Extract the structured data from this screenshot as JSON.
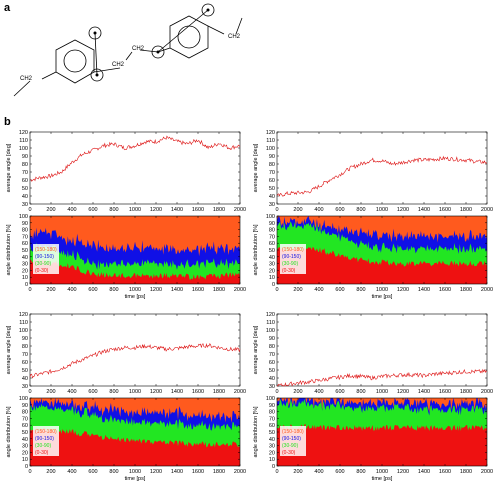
{
  "panel_a": {
    "letter": "a",
    "labels": {
      "ch2_left": "CH2",
      "ch2_bridge_top": "CH2",
      "ch2_bridge_bottom": "CH2",
      "ch2_right": "CH2"
    }
  },
  "panel_b": {
    "letter": "b"
  },
  "axis_text": {
    "avg_ylabel": "average angle [deg]",
    "dist_ylabel": "angle distribution [%]",
    "xlabel": "time [ps]"
  },
  "legend_labels": [
    "150-180",
    "90-150",
    "30-90",
    "0-30"
  ],
  "colors": {
    "line": "#dd1111",
    "c150_180": "#ff5a1e",
    "c90_150": "#1010e6",
    "c30_90": "#22e622",
    "c0_30": "#ee1111"
  },
  "chart_data": [
    {
      "type": "line",
      "position": "top-left",
      "ylabel": "average angle [deg]",
      "xlabel": "",
      "xlim": [
        0,
        2000
      ],
      "ylim": [
        30,
        120
      ],
      "xticks": [
        0,
        200,
        400,
        600,
        800,
        1000,
        1200,
        1400,
        1600,
        1800,
        2000
      ],
      "yticks": [
        30,
        40,
        50,
        60,
        70,
        80,
        90,
        100,
        110,
        120
      ],
      "series": [
        {
          "x": [
            0,
            100,
            200,
            300,
            400,
            500,
            600,
            700,
            800,
            900,
            1000,
            1100,
            1200,
            1300,
            1400,
            1500,
            1600,
            1700,
            1800,
            1900,
            2000
          ],
          "values": [
            60,
            63,
            65,
            70,
            82,
            92,
            97,
            103,
            105,
            100,
            103,
            108,
            108,
            113,
            108,
            105,
            110,
            100,
            106,
            100,
            103
          ]
        }
      ]
    },
    {
      "type": "area",
      "position": "top-left",
      "stacked": true,
      "ylabel": "angle distribution [%]",
      "xlabel": "time [ps]",
      "xlim": [
        0,
        2000
      ],
      "ylim": [
        0,
        100
      ],
      "xticks": [
        0,
        200,
        400,
        600,
        800,
        1000,
        1200,
        1400,
        1600,
        1800,
        2000
      ],
      "yticks": [
        0,
        10,
        20,
        30,
        40,
        50,
        60,
        70,
        80,
        90,
        100
      ],
      "legend": "left",
      "x": [
        0,
        200,
        400,
        600,
        800,
        1000,
        1200,
        1400,
        1600,
        1800,
        2000
      ],
      "series": [
        {
          "name": "0-30",
          "values": [
            35,
            32,
            25,
            15,
            12,
            12,
            12,
            12,
            10,
            12,
            14
          ]
        },
        {
          "name": "30-90",
          "values": [
            20,
            22,
            18,
            15,
            18,
            18,
            20,
            15,
            20,
            18,
            16
          ]
        },
        {
          "name": "90-150",
          "values": [
            20,
            21,
            22,
            28,
            22,
            24,
            23,
            21,
            22,
            22,
            23
          ]
        },
        {
          "name": "150-180",
          "values": [
            25,
            25,
            35,
            42,
            48,
            46,
            45,
            52,
            48,
            48,
            47
          ]
        }
      ]
    },
    {
      "type": "line",
      "position": "top-right",
      "ylabel": "average angle [deg]",
      "xlabel": "",
      "xlim": [
        0,
        2000
      ],
      "ylim": [
        30,
        120
      ],
      "xticks": [
        0,
        200,
        400,
        600,
        800,
        1000,
        1200,
        1400,
        1600,
        1800,
        2000
      ],
      "yticks": [
        30,
        40,
        50,
        60,
        70,
        80,
        90,
        100,
        110,
        120
      ],
      "series": [
        {
          "x": [
            0,
            100,
            200,
            300,
            400,
            500,
            600,
            700,
            800,
            900,
            1000,
            1100,
            1200,
            1300,
            1400,
            1500,
            1600,
            1700,
            1800,
            1900,
            2000
          ],
          "values": [
            40,
            43,
            44,
            45,
            52,
            60,
            67,
            75,
            80,
            85,
            84,
            80,
            82,
            85,
            85,
            86,
            87,
            86,
            85,
            83,
            82
          ]
        }
      ]
    },
    {
      "type": "area",
      "position": "top-right",
      "stacked": true,
      "ylabel": "angle distribution [%]",
      "xlabel": "time [ps]",
      "xlim": [
        0,
        2000
      ],
      "ylim": [
        0,
        100
      ],
      "xticks": [
        0,
        200,
        400,
        600,
        800,
        1000,
        1200,
        1400,
        1600,
        1800,
        2000
      ],
      "yticks": [
        0,
        10,
        20,
        30,
        40,
        50,
        60,
        70,
        80,
        90,
        100
      ],
      "legend": "left",
      "x": [
        0,
        200,
        400,
        600,
        800,
        1000,
        1200,
        1400,
        1600,
        1800,
        2000
      ],
      "series": [
        {
          "name": "0-30",
          "values": [
            50,
            52,
            50,
            42,
            35,
            32,
            30,
            30,
            30,
            30,
            30
          ]
        },
        {
          "name": "30-90",
          "values": [
            35,
            35,
            32,
            28,
            22,
            22,
            22,
            22,
            22,
            22,
            22
          ]
        },
        {
          "name": "90-150",
          "values": [
            7,
            7,
            8,
            12,
            17,
            18,
            18,
            18,
            18,
            18,
            18
          ]
        },
        {
          "name": "150-180",
          "values": [
            8,
            6,
            10,
            18,
            26,
            28,
            30,
            30,
            30,
            30,
            30
          ]
        }
      ]
    },
    {
      "type": "line",
      "position": "bottom-left",
      "ylabel": "average angle [deg]",
      "xlabel": "",
      "xlim": [
        0,
        2000
      ],
      "ylim": [
        30,
        120
      ],
      "xticks": [
        0,
        200,
        400,
        600,
        800,
        1000,
        1200,
        1400,
        1600,
        1800,
        2000
      ],
      "yticks": [
        30,
        40,
        50,
        60,
        70,
        80,
        90,
        100,
        110,
        120
      ],
      "series": [
        {
          "x": [
            0,
            100,
            200,
            300,
            400,
            500,
            600,
            700,
            800,
            900,
            1000,
            1100,
            1200,
            1300,
            1400,
            1500,
            1600,
            1700,
            1800,
            1900,
            2000
          ],
          "values": [
            42,
            45,
            48,
            52,
            58,
            63,
            68,
            73,
            76,
            78,
            78,
            80,
            78,
            76,
            77,
            79,
            80,
            81,
            78,
            76,
            75
          ]
        }
      ]
    },
    {
      "type": "area",
      "position": "bottom-left",
      "stacked": true,
      "ylabel": "angle distribution [%]",
      "xlabel": "time [ps]",
      "xlim": [
        0,
        2000
      ],
      "ylim": [
        0,
        100
      ],
      "xticks": [
        0,
        200,
        400,
        600,
        800,
        1000,
        1200,
        1400,
        1600,
        1800,
        2000
      ],
      "yticks": [
        0,
        10,
        20,
        30,
        40,
        50,
        60,
        70,
        80,
        90,
        100
      ],
      "legend": "left",
      "x": [
        0,
        200,
        400,
        600,
        800,
        1000,
        1200,
        1400,
        1600,
        1800,
        2000
      ],
      "series": [
        {
          "name": "0-30",
          "values": [
            55,
            52,
            50,
            45,
            40,
            38,
            35,
            33,
            32,
            32,
            32
          ]
        },
        {
          "name": "30-90",
          "values": [
            33,
            33,
            32,
            30,
            28,
            27,
            28,
            28,
            27,
            27,
            27
          ]
        },
        {
          "name": "90-150",
          "values": [
            7,
            8,
            9,
            12,
            14,
            15,
            15,
            15,
            15,
            15,
            15
          ]
        },
        {
          "name": "150-180",
          "values": [
            5,
            7,
            9,
            13,
            18,
            20,
            22,
            24,
            26,
            26,
            26
          ]
        }
      ]
    },
    {
      "type": "line",
      "position": "bottom-right",
      "ylabel": "average angle [deg]",
      "xlabel": "",
      "xlim": [
        0,
        2000
      ],
      "ylim": [
        30,
        120
      ],
      "xticks": [
        0,
        200,
        400,
        600,
        800,
        1000,
        1200,
        1400,
        1600,
        1800,
        2000
      ],
      "yticks": [
        30,
        40,
        50,
        60,
        70,
        80,
        90,
        100,
        110,
        120
      ],
      "series": [
        {
          "x": [
            0,
            100,
            200,
            300,
            400,
            500,
            600,
            700,
            800,
            900,
            1000,
            1100,
            1200,
            1300,
            1400,
            1500,
            1600,
            1700,
            1800,
            1900,
            2000
          ],
          "values": [
            30,
            32,
            34,
            35,
            37,
            39,
            41,
            43,
            42,
            40,
            42,
            43,
            44,
            44,
            43,
            45,
            46,
            47,
            48,
            48,
            48
          ]
        }
      ]
    },
    {
      "type": "area",
      "position": "bottom-right",
      "stacked": true,
      "ylabel": "angle distribution [%]",
      "xlabel": "time [ps]",
      "xlim": [
        0,
        2000
      ],
      "ylim": [
        0,
        100
      ],
      "xticks": [
        0,
        200,
        400,
        600,
        800,
        1000,
        1200,
        1400,
        1600,
        1800,
        2000
      ],
      "yticks": [
        0,
        10,
        20,
        30,
        40,
        50,
        60,
        70,
        80,
        90,
        100
      ],
      "legend": "left",
      "x": [
        0,
        200,
        400,
        600,
        800,
        1000,
        1200,
        1400,
        1600,
        1800,
        2000
      ],
      "series": [
        {
          "name": "0-30",
          "values": [
            58,
            58,
            57,
            56,
            56,
            56,
            56,
            56,
            56,
            56,
            56
          ]
        },
        {
          "name": "30-90",
          "values": [
            35,
            34,
            33,
            32,
            30,
            29,
            28,
            27,
            27,
            27,
            27
          ]
        },
        {
          "name": "90-150",
          "values": [
            5,
            6,
            6,
            7,
            8,
            8,
            9,
            9,
            9,
            9,
            9
          ]
        },
        {
          "name": "150-180",
          "values": [
            2,
            2,
            4,
            5,
            6,
            7,
            7,
            8,
            8,
            8,
            8
          ]
        }
      ]
    }
  ]
}
